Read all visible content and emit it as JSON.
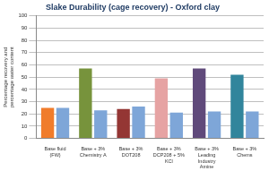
{
  "chart_data": {
    "type": "bar",
    "title": "Slake Durability (cage recovery) - Oxford clay",
    "y_label": "Percentage recovery and percentage water content",
    "categories": [
      "Base fluid (FW)",
      "Base + 3% Chemistry A",
      "Base + 3% DOT208",
      "Base + 3% DCP208 + 5% KCl",
      "Base + 3% Leading Industry Amine",
      "Base + 3% Chems"
    ],
    "series": [
      {
        "colors": [
          "#f07c2b",
          "#77933c",
          "#943634",
          "#e6a3a3",
          "#604a7b",
          "#31859c"
        ],
        "values": [
          25,
          57,
          24,
          49,
          57,
          52
        ]
      },
      {
        "color": "#7ea6d8",
        "values": [
          25,
          23,
          26,
          21,
          22,
          22
        ]
      }
    ],
    "ylim": [
      0,
      100
    ],
    "yticks": [
      0,
      10,
      20,
      30,
      40,
      50,
      60,
      70,
      80,
      90,
      100
    ],
    "grid": true
  }
}
